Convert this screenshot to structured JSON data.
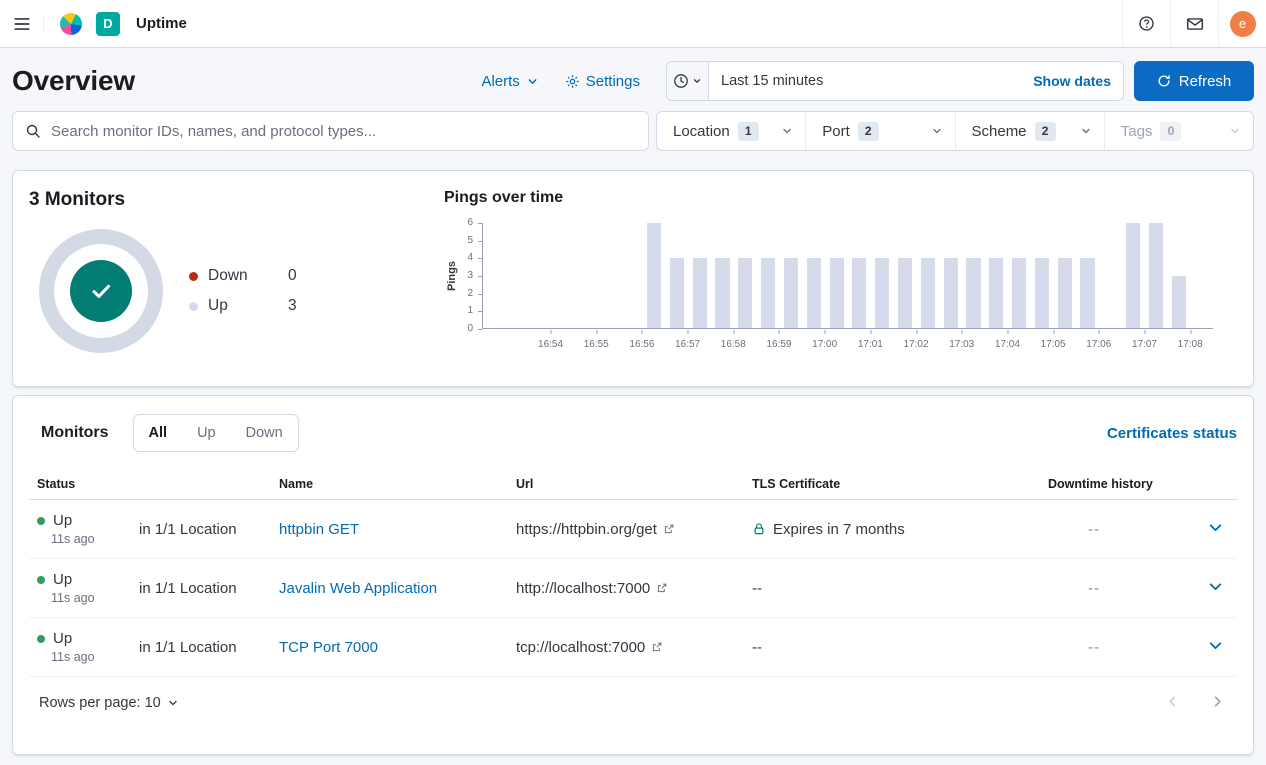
{
  "colors": {
    "primary_link": "#006bb4",
    "refresh_button": "#0b6bc2",
    "donut_ring": "#d3dae6",
    "donut_center": "#017d73",
    "legend_down_dot": "#bd271e",
    "legend_up_dot": "#d6dbeb",
    "status_up_dot": "#2f9e5f",
    "bar_color": "#d6dbeb",
    "deployment_badge": "#00a9a0",
    "avatar": "#f07e45"
  },
  "navbar": {
    "app_title": "Uptime",
    "deployment_initial": "D",
    "avatar_initial": "e"
  },
  "header": {
    "title": "Overview",
    "alerts_label": "Alerts",
    "settings_label": "Settings",
    "time_range": "Last 15 minutes",
    "show_dates_label": "Show dates",
    "refresh_label": "Refresh"
  },
  "filter_bar": {
    "search_placeholder": "Search monitor IDs, names, and protocol types...",
    "filters": [
      {
        "label": "Location",
        "count": "1",
        "disabled": false
      },
      {
        "label": "Port",
        "count": "2",
        "disabled": false
      },
      {
        "label": "Scheme",
        "count": "2",
        "disabled": false
      },
      {
        "label": "Tags",
        "count": "0",
        "disabled": true
      }
    ]
  },
  "snapshot": {
    "title": "3 Monitors",
    "legend": [
      {
        "label": "Down",
        "value": "0"
      },
      {
        "label": "Up",
        "value": "3"
      }
    ]
  },
  "chart_data": {
    "type": "bar",
    "title": "Pings over time",
    "xlabel": "",
    "ylabel": "Pings",
    "ylim": [
      0,
      6
    ],
    "yticks": [
      0,
      1,
      2,
      3,
      4,
      5,
      6
    ],
    "grid": false,
    "legend_position": "none",
    "x_domain": [
      "16:52:30",
      "17:08:30"
    ],
    "x_ticks": [
      "16:54",
      "16:55",
      "16:56",
      "16:57",
      "16:58",
      "16:59",
      "17:00",
      "17:01",
      "17:02",
      "17:03",
      "17:04",
      "17:05",
      "17:06",
      "17:07",
      "17:08"
    ],
    "bucket_seconds": 30,
    "points": [
      {
        "time": "16:56:00",
        "pings": 6
      },
      {
        "time": "16:56:30",
        "pings": 4
      },
      {
        "time": "16:57:00",
        "pings": 4
      },
      {
        "time": "16:57:30",
        "pings": 4
      },
      {
        "time": "16:58:00",
        "pings": 4
      },
      {
        "time": "16:58:30",
        "pings": 4
      },
      {
        "time": "16:59:00",
        "pings": 4
      },
      {
        "time": "16:59:30",
        "pings": 4
      },
      {
        "time": "17:00:00",
        "pings": 4
      },
      {
        "time": "17:00:30",
        "pings": 4
      },
      {
        "time": "17:01:00",
        "pings": 4
      },
      {
        "time": "17:01:30",
        "pings": 4
      },
      {
        "time": "17:02:00",
        "pings": 4
      },
      {
        "time": "17:02:30",
        "pings": 4
      },
      {
        "time": "17:03:00",
        "pings": 4
      },
      {
        "time": "17:03:30",
        "pings": 4
      },
      {
        "time": "17:04:00",
        "pings": 4
      },
      {
        "time": "17:04:30",
        "pings": 4
      },
      {
        "time": "17:05:00",
        "pings": 4
      },
      {
        "time": "17:05:30",
        "pings": 4
      },
      {
        "time": "17:06:30",
        "pings": 6
      },
      {
        "time": "17:07:00",
        "pings": 6
      },
      {
        "time": "17:07:30",
        "pings": 3
      }
    ]
  },
  "monitors": {
    "title": "Monitors",
    "tabs": [
      "All",
      "Up",
      "Down"
    ],
    "selected_tab": "All",
    "certificates_link": "Certificates status",
    "columns": [
      "Status",
      "Name",
      "Url",
      "TLS Certificate",
      "Downtime history"
    ],
    "rows": [
      {
        "status": "Up",
        "checked_ago": "11s ago",
        "location": "in 1/1 Location",
        "name": "httpbin GET",
        "url": "https://httpbin.org/get",
        "tls": "Expires in 7 months",
        "tls_has_lock": true,
        "downtime": "--"
      },
      {
        "status": "Up",
        "checked_ago": "11s ago",
        "location": "in 1/1 Location",
        "name": "Javalin Web Application",
        "url": "http://localhost:7000",
        "tls": "--",
        "tls_has_lock": false,
        "downtime": "--"
      },
      {
        "status": "Up",
        "checked_ago": "11s ago",
        "location": "in 1/1 Location",
        "name": "TCP Port 7000",
        "url": "tcp://localhost:7000",
        "tls": "--",
        "tls_has_lock": false,
        "downtime": "--"
      }
    ],
    "rows_per_page_label": "Rows per page: 10"
  }
}
